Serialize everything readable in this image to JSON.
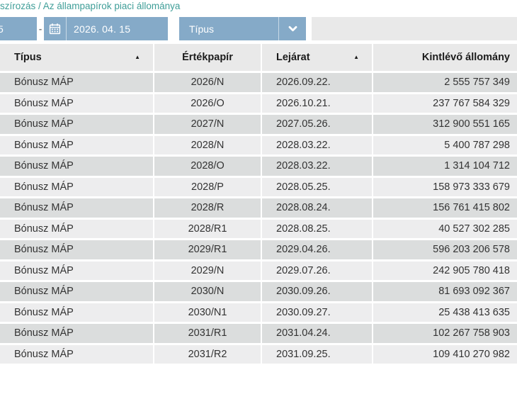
{
  "breadcrumb": {
    "text": "szírozás / Az állampapírok piaci állománya"
  },
  "filters": {
    "date_from_partial": "5",
    "range_separator": "-",
    "date_to": "2026. 04. 15",
    "type_dropdown_value": "Típus"
  },
  "table": {
    "columns": [
      {
        "label": "Típus",
        "sortable": true,
        "sort_icon": "▲"
      },
      {
        "label": "Értékpapír",
        "sortable": false
      },
      {
        "label": "Lejárat",
        "sortable": true,
        "sort_icon": "▲"
      },
      {
        "label": "Kintlévő állomány",
        "sortable": false
      }
    ],
    "rows": [
      [
        "Bónusz MÁP",
        "2026/N",
        "2026.09.22.",
        "2 555 757 349"
      ],
      [
        "Bónusz MÁP",
        "2026/O",
        "2026.10.21.",
        "237 767 584 329"
      ],
      [
        "Bónusz MÁP",
        "2027/N",
        "2027.05.26.",
        "312 900 551 165"
      ],
      [
        "Bónusz MÁP",
        "2028/N",
        "2028.03.22.",
        "5 400 787 298"
      ],
      [
        "Bónusz MÁP",
        "2028/O",
        "2028.03.22.",
        "1 314 104 712"
      ],
      [
        "Bónusz MÁP",
        "2028/P",
        "2028.05.25.",
        "158 973 333 679"
      ],
      [
        "Bónusz MÁP",
        "2028/R",
        "2028.08.24.",
        "156 761 415 802"
      ],
      [
        "Bónusz MÁP",
        "2028/R1",
        "2028.08.25.",
        "40 527 302 285"
      ],
      [
        "Bónusz MÁP",
        "2029/R1",
        "2029.04.26.",
        "596 203 206 578"
      ],
      [
        "Bónusz MÁP",
        "2029/N",
        "2029.07.26.",
        "242 905 780 418"
      ],
      [
        "Bónusz MÁP",
        "2030/N",
        "2030.09.26.",
        "81 693 092 367"
      ],
      [
        "Bónusz MÁP",
        "2030/N1",
        "2030.09.27.",
        "25 438 413 635"
      ],
      [
        "Bónusz MÁP",
        "2031/R1",
        "2031.04.24.",
        "102 267 758 903"
      ],
      [
        "Bónusz MÁP",
        "2031/R2",
        "2031.09.25.",
        "109 410 270 982"
      ]
    ]
  },
  "colors": {
    "accent_blue": "#85aac8",
    "breadcrumb_teal": "#3f9e98",
    "header_bg": "#e9e9e9",
    "row_odd_bg": "#dbdddd",
    "row_even_bg": "#ededee"
  }
}
